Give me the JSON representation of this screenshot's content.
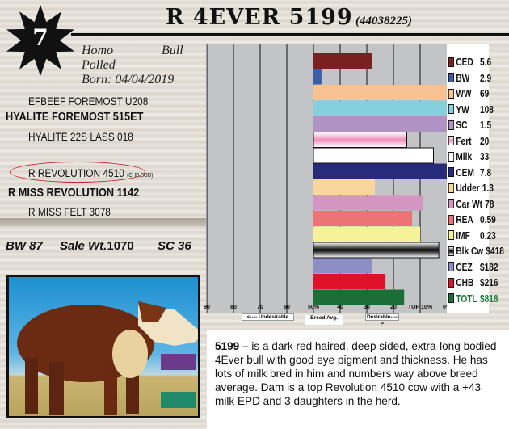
{
  "lot": {
    "number": "7",
    "title": "R 4EVER 5199",
    "registration": "(44038225)"
  },
  "animal": {
    "horn": "Homo",
    "polled": "Polled",
    "sex": "Bull",
    "born": "Born: 04/04/2019"
  },
  "pedigree": {
    "sire_sire": "EFBEEF FOREMOST U208",
    "sire": "HYALITE FOREMOST 515ET",
    "sire_dam": "HYALITE 22S LASS 018",
    "dam_sire": "R REVOLUTION 4510",
    "dam_sire_note": "(CHB,SOD)",
    "dam": "R MISS REVOLUTION 1142",
    "dam_dam": "R MISS FELT 3078"
  },
  "stats": {
    "bw": "BW 87",
    "sale_wt_label": "Sale Wt.",
    "sale_wt": "1070",
    "sc": "SC 36"
  },
  "chart_data": {
    "type": "bar",
    "orientation": "horizontal",
    "xlabel_ticks": [
      "90",
      "80",
      "70",
      "60",
      "50%",
      "40",
      "30",
      "20",
      "TOP 10%",
      "0%"
    ],
    "axis_labels": {
      "left": "<---- Undesirable",
      "center": "Breed Avg.",
      "right": "Desirable---->"
    },
    "xlim": [
      90,
      0
    ],
    "grid": true,
    "legend": "right",
    "series": [
      {
        "trait": "CED",
        "epd": "5.6",
        "percentile": 28,
        "color": "#7a1f22"
      },
      {
        "trait": "BW",
        "epd": "2.9",
        "percentile": 47,
        "color": "#3f5ca8"
      },
      {
        "trait": "WW",
        "epd": "69",
        "percentile": 0,
        "color": "#f7c191"
      },
      {
        "trait": "YW",
        "epd": "108",
        "percentile": 0,
        "color": "#86cfdd"
      },
      {
        "trait": "SC",
        "epd": "1.5",
        "percentile": 0,
        "color": "#b092c4"
      },
      {
        "trait": "Fert",
        "epd": "20",
        "percentile": 15,
        "color": "#f2a6c6"
      },
      {
        "trait": "Milk",
        "epd": "33",
        "percentile": 5,
        "color": "#ffffff"
      },
      {
        "trait": "CEM",
        "epd": "7.8",
        "percentile": 0,
        "color": "#272b7a"
      },
      {
        "trait": "Udder",
        "epd": "1.3",
        "percentile": 27,
        "color": "#f9d79c"
      },
      {
        "trait": "Car Wt",
        "epd": "78",
        "percentile": 9,
        "color": "#d595c2"
      },
      {
        "trait": "REA",
        "epd": "0.59",
        "percentile": 13,
        "color": "#ee7375"
      },
      {
        "trait": "IMF",
        "epd": "0.23",
        "percentile": 10,
        "color": "#f6f29a"
      },
      {
        "trait": "Blk Cw",
        "epd": "$418",
        "percentile": 3,
        "color": "#555555"
      },
      {
        "trait": "CEZ",
        "epd": "$182",
        "percentile": 28,
        "color": "#8d8ec4"
      },
      {
        "trait": "CHB",
        "epd": "$216",
        "percentile": 23,
        "color": "#e0122a"
      },
      {
        "trait": "TOTL",
        "epd": "$816",
        "percentile": 16,
        "color": "#1a6e36"
      }
    ]
  },
  "description": {
    "lead": "5199 –",
    "body": " is a dark red haired, deep sided, extra-long bodied 4Ever bull with good eye pigment and thickness. He has lots of milk bred in him and numbers way above breed average. Dam is a top Revolution 4510 cow with a +43 milk EPD and 3 daughters in the herd."
  }
}
